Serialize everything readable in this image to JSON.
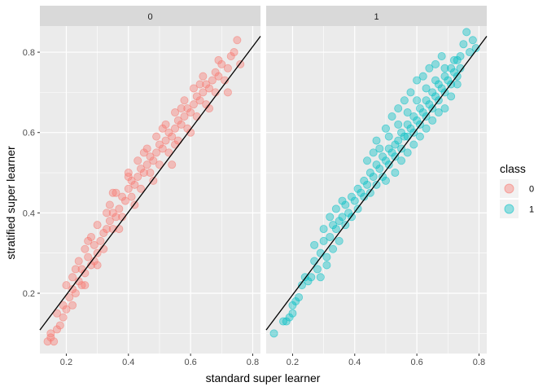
{
  "chart_data": {
    "type": "scatter",
    "xlabel": "standard super learner",
    "ylabel": "stratified super learner",
    "xlim": [
      0.115,
      0.825
    ],
    "ylim": [
      0.05,
      0.865
    ],
    "xticks": [
      0.2,
      0.4,
      0.6,
      0.8
    ],
    "xtick_labels": [
      "0.2",
      "0.4",
      "0.6",
      "0.8"
    ],
    "yticks": [
      0.2,
      0.4,
      0.6,
      0.8
    ],
    "ytick_labels": [
      "0.2",
      "0.4",
      "0.6",
      "0.8"
    ],
    "grid": true,
    "facet_by": "class",
    "facets": [
      {
        "label": "0",
        "color": "#F8766D",
        "points": [
          [
            0.14,
            0.08
          ],
          [
            0.15,
            0.1
          ],
          [
            0.15,
            0.09
          ],
          [
            0.16,
            0.08
          ],
          [
            0.17,
            0.11
          ],
          [
            0.18,
            0.12
          ],
          [
            0.19,
            0.14
          ],
          [
            0.17,
            0.15
          ],
          [
            0.19,
            0.17
          ],
          [
            0.2,
            0.16
          ],
          [
            0.21,
            0.19
          ],
          [
            0.22,
            0.21
          ],
          [
            0.23,
            0.2
          ],
          [
            0.22,
            0.24
          ],
          [
            0.24,
            0.23
          ],
          [
            0.25,
            0.26
          ],
          [
            0.26,
            0.25
          ],
          [
            0.24,
            0.28
          ],
          [
            0.27,
            0.29
          ],
          [
            0.28,
            0.27
          ],
          [
            0.26,
            0.31
          ],
          [
            0.29,
            0.32
          ],
          [
            0.3,
            0.3
          ],
          [
            0.28,
            0.34
          ],
          [
            0.31,
            0.33
          ],
          [
            0.32,
            0.35
          ],
          [
            0.3,
            0.37
          ],
          [
            0.33,
            0.36
          ],
          [
            0.34,
            0.38
          ],
          [
            0.35,
            0.4
          ],
          [
            0.36,
            0.39
          ],
          [
            0.34,
            0.42
          ],
          [
            0.37,
            0.41
          ],
          [
            0.38,
            0.44
          ],
          [
            0.36,
            0.45
          ],
          [
            0.39,
            0.43
          ],
          [
            0.4,
            0.46
          ],
          [
            0.41,
            0.48
          ],
          [
            0.42,
            0.47
          ],
          [
            0.4,
            0.5
          ],
          [
            0.43,
            0.49
          ],
          [
            0.44,
            0.51
          ],
          [
            0.45,
            0.5
          ],
          [
            0.43,
            0.53
          ],
          [
            0.46,
            0.52
          ],
          [
            0.47,
            0.54
          ],
          [
            0.48,
            0.53
          ],
          [
            0.46,
            0.56
          ],
          [
            0.49,
            0.55
          ],
          [
            0.5,
            0.57
          ],
          [
            0.51,
            0.56
          ],
          [
            0.49,
            0.59
          ],
          [
            0.52,
            0.58
          ],
          [
            0.53,
            0.6
          ],
          [
            0.54,
            0.59
          ],
          [
            0.52,
            0.62
          ],
          [
            0.55,
            0.61
          ],
          [
            0.56,
            0.63
          ],
          [
            0.57,
            0.62
          ],
          [
            0.55,
            0.65
          ],
          [
            0.58,
            0.64
          ],
          [
            0.59,
            0.66
          ],
          [
            0.6,
            0.65
          ],
          [
            0.58,
            0.68
          ],
          [
            0.61,
            0.67
          ],
          [
            0.62,
            0.69
          ],
          [
            0.63,
            0.68
          ],
          [
            0.61,
            0.71
          ],
          [
            0.64,
            0.7
          ],
          [
            0.65,
            0.72
          ],
          [
            0.66,
            0.71
          ],
          [
            0.64,
            0.74
          ],
          [
            0.67,
            0.73
          ],
          [
            0.68,
            0.75
          ],
          [
            0.69,
            0.74
          ],
          [
            0.7,
            0.77
          ],
          [
            0.72,
            0.76
          ],
          [
            0.73,
            0.79
          ],
          [
            0.74,
            0.8
          ],
          [
            0.75,
            0.83
          ],
          [
            0.76,
            0.77
          ],
          [
            0.22,
            0.17
          ],
          [
            0.25,
            0.22
          ],
          [
            0.3,
            0.27
          ],
          [
            0.27,
            0.33
          ],
          [
            0.32,
            0.31
          ],
          [
            0.35,
            0.36
          ],
          [
            0.38,
            0.39
          ],
          [
            0.41,
            0.44
          ],
          [
            0.44,
            0.46
          ],
          [
            0.47,
            0.5
          ],
          [
            0.5,
            0.52
          ],
          [
            0.53,
            0.55
          ],
          [
            0.56,
            0.58
          ],
          [
            0.59,
            0.61
          ],
          [
            0.62,
            0.64
          ],
          [
            0.65,
            0.67
          ],
          [
            0.68,
            0.7
          ],
          [
            0.71,
            0.73
          ],
          [
            0.2,
            0.22
          ],
          [
            0.23,
            0.26
          ],
          [
            0.26,
            0.22
          ],
          [
            0.29,
            0.28
          ],
          [
            0.33,
            0.4
          ],
          [
            0.37,
            0.36
          ],
          [
            0.42,
            0.42
          ],
          [
            0.45,
            0.55
          ],
          [
            0.48,
            0.48
          ],
          [
            0.51,
            0.61
          ],
          [
            0.54,
            0.52
          ],
          [
            0.57,
            0.66
          ],
          [
            0.6,
            0.6
          ],
          [
            0.63,
            0.72
          ],
          [
            0.66,
            0.66
          ],
          [
            0.69,
            0.78
          ],
          [
            0.72,
            0.7
          ],
          [
            0.35,
            0.45
          ],
          [
            0.4,
            0.49
          ],
          [
            0.55,
            0.57
          ]
        ]
      },
      {
        "label": "1",
        "color": "#00BFC4",
        "points": [
          [
            0.14,
            0.1
          ],
          [
            0.17,
            0.13
          ],
          [
            0.18,
            0.13
          ],
          [
            0.19,
            0.14
          ],
          [
            0.2,
            0.17
          ],
          [
            0.21,
            0.18
          ],
          [
            0.2,
            0.15
          ],
          [
            0.22,
            0.19
          ],
          [
            0.23,
            0.22
          ],
          [
            0.24,
            0.24
          ],
          [
            0.25,
            0.23
          ],
          [
            0.26,
            0.24
          ],
          [
            0.27,
            0.28
          ],
          [
            0.28,
            0.26
          ],
          [
            0.29,
            0.3
          ],
          [
            0.3,
            0.33
          ],
          [
            0.31,
            0.29
          ],
          [
            0.32,
            0.34
          ],
          [
            0.33,
            0.37
          ],
          [
            0.34,
            0.36
          ],
          [
            0.35,
            0.33
          ],
          [
            0.36,
            0.39
          ],
          [
            0.37,
            0.42
          ],
          [
            0.38,
            0.4
          ],
          [
            0.39,
            0.44
          ],
          [
            0.4,
            0.43
          ],
          [
            0.41,
            0.46
          ],
          [
            0.42,
            0.45
          ],
          [
            0.43,
            0.48
          ],
          [
            0.44,
            0.47
          ],
          [
            0.45,
            0.5
          ],
          [
            0.46,
            0.49
          ],
          [
            0.47,
            0.52
          ],
          [
            0.48,
            0.51
          ],
          [
            0.49,
            0.54
          ],
          [
            0.5,
            0.53
          ],
          [
            0.51,
            0.56
          ],
          [
            0.52,
            0.55
          ],
          [
            0.53,
            0.57
          ],
          [
            0.54,
            0.58
          ],
          [
            0.55,
            0.6
          ],
          [
            0.56,
            0.59
          ],
          [
            0.57,
            0.62
          ],
          [
            0.58,
            0.61
          ],
          [
            0.59,
            0.64
          ],
          [
            0.6,
            0.63
          ],
          [
            0.61,
            0.66
          ],
          [
            0.62,
            0.65
          ],
          [
            0.63,
            0.68
          ],
          [
            0.64,
            0.67
          ],
          [
            0.65,
            0.7
          ],
          [
            0.66,
            0.69
          ],
          [
            0.67,
            0.72
          ],
          [
            0.68,
            0.71
          ],
          [
            0.69,
            0.74
          ],
          [
            0.7,
            0.73
          ],
          [
            0.71,
            0.76
          ],
          [
            0.72,
            0.75
          ],
          [
            0.73,
            0.78
          ],
          [
            0.74,
            0.79
          ],
          [
            0.75,
            0.82
          ],
          [
            0.76,
            0.85
          ],
          [
            0.77,
            0.8
          ],
          [
            0.78,
            0.83
          ],
          [
            0.79,
            0.81
          ],
          [
            0.47,
            0.58
          ],
          [
            0.5,
            0.61
          ],
          [
            0.52,
            0.64
          ],
          [
            0.54,
            0.66
          ],
          [
            0.56,
            0.68
          ],
          [
            0.58,
            0.7
          ],
          [
            0.6,
            0.73
          ],
          [
            0.62,
            0.74
          ],
          [
            0.64,
            0.76
          ],
          [
            0.66,
            0.77
          ],
          [
            0.68,
            0.79
          ],
          [
            0.5,
            0.48
          ],
          [
            0.53,
            0.5
          ],
          [
            0.55,
            0.53
          ],
          [
            0.57,
            0.55
          ],
          [
            0.59,
            0.57
          ],
          [
            0.61,
            0.59
          ],
          [
            0.63,
            0.61
          ],
          [
            0.65,
            0.63
          ],
          [
            0.67,
            0.65
          ],
          [
            0.69,
            0.66
          ],
          [
            0.71,
            0.69
          ],
          [
            0.73,
            0.72
          ],
          [
            0.29,
            0.24
          ],
          [
            0.31,
            0.27
          ],
          [
            0.33,
            0.31
          ],
          [
            0.35,
            0.38
          ],
          [
            0.37,
            0.37
          ],
          [
            0.39,
            0.39
          ],
          [
            0.41,
            0.41
          ],
          [
            0.43,
            0.44
          ],
          [
            0.45,
            0.45
          ],
          [
            0.47,
            0.47
          ],
          [
            0.49,
            0.49
          ],
          [
            0.51,
            0.52
          ],
          [
            0.53,
            0.54
          ],
          [
            0.55,
            0.56
          ],
          [
            0.57,
            0.59
          ],
          [
            0.59,
            0.6
          ],
          [
            0.61,
            0.62
          ],
          [
            0.63,
            0.64
          ],
          [
            0.65,
            0.66
          ],
          [
            0.67,
            0.68
          ],
          [
            0.69,
            0.7
          ],
          [
            0.71,
            0.72
          ],
          [
            0.73,
            0.74
          ],
          [
            0.74,
            0.76
          ],
          [
            0.44,
            0.53
          ],
          [
            0.46,
            0.55
          ],
          [
            0.48,
            0.56
          ],
          [
            0.51,
            0.59
          ],
          [
            0.54,
            0.62
          ],
          [
            0.57,
            0.65
          ],
          [
            0.6,
            0.68
          ],
          [
            0.63,
            0.71
          ],
          [
            0.66,
            0.73
          ],
          [
            0.69,
            0.76
          ],
          [
            0.72,
            0.78
          ],
          [
            0.27,
            0.32
          ],
          [
            0.3,
            0.36
          ],
          [
            0.32,
            0.39
          ],
          [
            0.34,
            0.41
          ],
          [
            0.36,
            0.43
          ]
        ]
      }
    ],
    "reference_line": {
      "slope": 1.03,
      "intercept": -0.01,
      "color": "#000000"
    },
    "legend": {
      "title": "class",
      "position": "right",
      "items": [
        {
          "label": "0",
          "color": "#F8766D"
        },
        {
          "label": "1",
          "color": "#00BFC4"
        }
      ]
    }
  }
}
